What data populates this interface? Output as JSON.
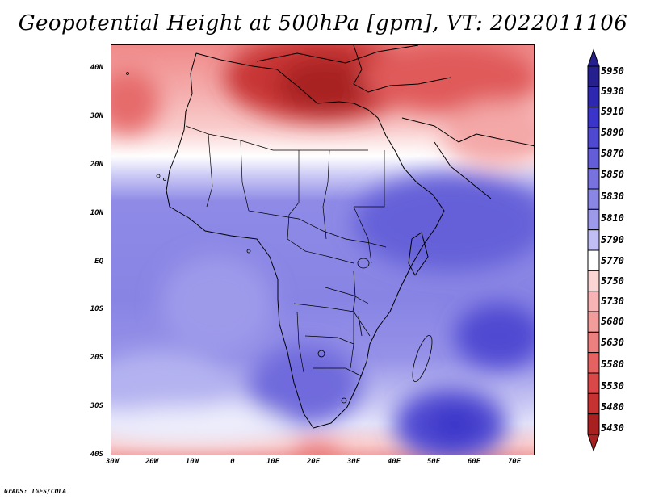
{
  "title": "Geopotential Height at 500hPa [gpm], VT: 2022011106",
  "credit": "GrADS: IGES/COLA",
  "map": {
    "projection": "latlon",
    "lon_range": [
      -30,
      75
    ],
    "lat_range": [
      -40,
      45
    ],
    "y_axis_labels": [
      "40N",
      "30N",
      "20N",
      "10N",
      "EQ",
      "10S",
      "20S",
      "30S",
      "40S"
    ],
    "x_axis_labels": [
      "30W",
      "20W",
      "10W",
      "0",
      "10E",
      "20E",
      "30E",
      "40E",
      "50E",
      "60E",
      "70E"
    ]
  },
  "colorbar": {
    "levels": [
      "5950",
      "5930",
      "5910",
      "5890",
      "5870",
      "5850",
      "5830",
      "5810",
      "5790",
      "5770",
      "5750",
      "5730",
      "5680",
      "5630",
      "5580",
      "5530",
      "5480",
      "5430"
    ],
    "colors": [
      "#26208e",
      "#2e28b0",
      "#3a34c8",
      "#4f49d2",
      "#635ed8",
      "#7772de",
      "#8a86e4",
      "#9e9aea",
      "#c0bef2",
      "#ffffff",
      "#fbd4d4",
      "#f8b4b4",
      "#f29c9c",
      "#ec8080",
      "#e46262",
      "#d84848",
      "#c43232",
      "#a82020"
    ]
  }
}
